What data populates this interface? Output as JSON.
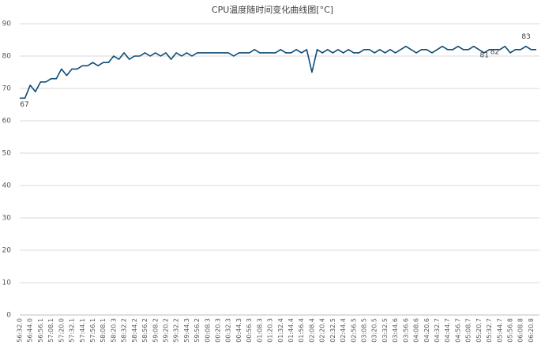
{
  "chart_data": {
    "type": "line",
    "title": "CPU温度随时间变化曲线图[°C]",
    "categories": [
      "56:32.0",
      null,
      "56:44.0",
      null,
      "56:56.1",
      null,
      "57:08.1",
      null,
      "57:20.0",
      null,
      "57:32.1",
      null,
      "57:44.1",
      null,
      "57:56.1",
      null,
      "58:08.1",
      null,
      "58:20.3",
      null,
      "58:32.2",
      null,
      "58:44.2",
      null,
      "58:56.2",
      null,
      "59:08.2",
      null,
      "59:20.2",
      null,
      "59:32.2",
      null,
      "59:44.3",
      null,
      "59:56.2",
      null,
      "00:08.3",
      null,
      "00:20.3",
      null,
      "00:32.3",
      null,
      "00:44.3",
      null,
      "00:56.3",
      null,
      "01:08.3",
      null,
      "01:20.3",
      null,
      "01:32.4",
      null,
      "01:44.4",
      null,
      "01:56.4",
      null,
      "02:08.4",
      null,
      "02:20.4",
      null,
      "02:32.5",
      null,
      "02:44.4",
      null,
      "02:56.5",
      null,
      "03:08.5",
      null,
      "03:20.5",
      null,
      "03:32.5",
      null,
      "03:44.6",
      null,
      "03:56.6",
      null,
      "04:08.6",
      null,
      "04:20.6",
      null,
      "04:32.7",
      null,
      "04:44.7",
      null,
      "04:56.7",
      null,
      "05:08.7",
      null,
      "05:20.7",
      null,
      "05:32.7",
      null,
      "05:44.7",
      null,
      "05:56.8",
      null,
      "06:08.8",
      null,
      "06:20.8",
      null
    ],
    "values": [
      67,
      67,
      71,
      69,
      72,
      72,
      73,
      73,
      76,
      74,
      76,
      76,
      77,
      77,
      78,
      77,
      78,
      78,
      80,
      79,
      81,
      79,
      80,
      80,
      81,
      80,
      81,
      80,
      81,
      79,
      81,
      80,
      81,
      80,
      81,
      81,
      81,
      81,
      81,
      81,
      81,
      80,
      81,
      81,
      81,
      82,
      81,
      81,
      81,
      81,
      82,
      81,
      81,
      82,
      81,
      82,
      75,
      82,
      81,
      82,
      81,
      82,
      81,
      82,
      81,
      81,
      82,
      82,
      81,
      82,
      81,
      82,
      81,
      82,
      83,
      82,
      81,
      82,
      82,
      81,
      82,
      83,
      82,
      82,
      83,
      82,
      82,
      83,
      82,
      81,
      82,
      82,
      82,
      83,
      81,
      82,
      82,
      83,
      82,
      82
    ],
    "value_labels": [
      "67",
      null,
      null,
      null,
      null,
      null,
      null,
      null,
      null,
      null,
      null,
      null,
      null,
      null,
      null,
      null,
      null,
      null,
      null,
      null,
      null,
      null,
      null,
      null,
      null,
      null,
      null,
      null,
      null,
      null,
      null,
      null,
      null,
      null,
      null,
      null,
      null,
      null,
      null,
      null,
      null,
      null,
      null,
      null,
      null,
      null,
      null,
      null,
      null,
      null,
      null,
      null,
      null,
      null,
      null,
      null,
      null,
      null,
      null,
      null,
      null,
      null,
      null,
      null,
      null,
      null,
      null,
      null,
      null,
      null,
      null,
      null,
      null,
      null,
      null,
      null,
      null,
      null,
      null,
      null,
      null,
      null,
      null,
      null,
      null,
      null,
      null,
      null,
      null,
      "81",
      null,
      "82",
      null,
      null,
      null,
      null,
      null,
      "83",
      null,
      null
    ],
    "color": "#0f4c75",
    "ylim": [
      0,
      90
    ],
    "yticks": [
      0,
      10,
      20,
      30,
      40,
      50,
      60,
      70,
      80,
      90
    ],
    "grid": true
  }
}
